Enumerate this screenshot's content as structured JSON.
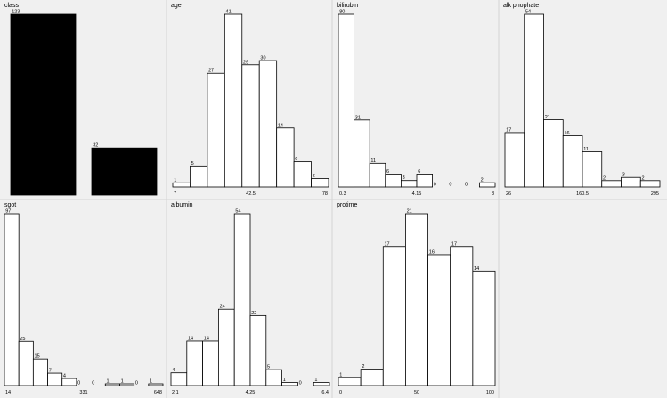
{
  "colors": {
    "background": "#f0f0f0",
    "bar_fill_class": "#000000",
    "bar_fill": "#ffffff",
    "bar_stroke": "#000000",
    "divider": "#d4d4d4"
  },
  "chart_data": [
    {
      "type": "bar",
      "title": "class",
      "categories": [
        "",
        ""
      ],
      "values": [
        123,
        32
      ],
      "bar_color": "#000000"
    },
    {
      "type": "bar",
      "title": "age",
      "values": [
        1,
        5,
        27,
        41,
        29,
        30,
        14,
        6,
        2
      ],
      "x_ticks": [
        "7",
        "42.5",
        "78"
      ]
    },
    {
      "type": "bar",
      "title": "bilirubin",
      "values": [
        80,
        31,
        11,
        6,
        3,
        6,
        0,
        0,
        0,
        2
      ],
      "x_ticks": [
        "0.3",
        "4.15",
        "8"
      ]
    },
    {
      "type": "bar",
      "title": "alk phophate",
      "values": [
        17,
        54,
        21,
        16,
        11,
        2,
        3,
        2
      ],
      "x_ticks": [
        "26",
        "160.5",
        "295"
      ]
    },
    {
      "type": "bar",
      "title": "sgot",
      "values": [
        97,
        25,
        15,
        7,
        4,
        0,
        0,
        1,
        1,
        0,
        1
      ],
      "x_ticks": [
        "14",
        "331",
        "648"
      ]
    },
    {
      "type": "bar",
      "title": "albumin",
      "values": [
        4,
        14,
        14,
        24,
        54,
        22,
        5,
        1,
        0,
        1
      ],
      "x_ticks": [
        "2.1",
        "4.25",
        "6.4"
      ]
    },
    {
      "type": "bar",
      "title": "protime",
      "values": [
        1,
        2,
        17,
        21,
        16,
        17,
        14
      ],
      "x_ticks": [
        "0",
        "50",
        "100"
      ]
    }
  ]
}
